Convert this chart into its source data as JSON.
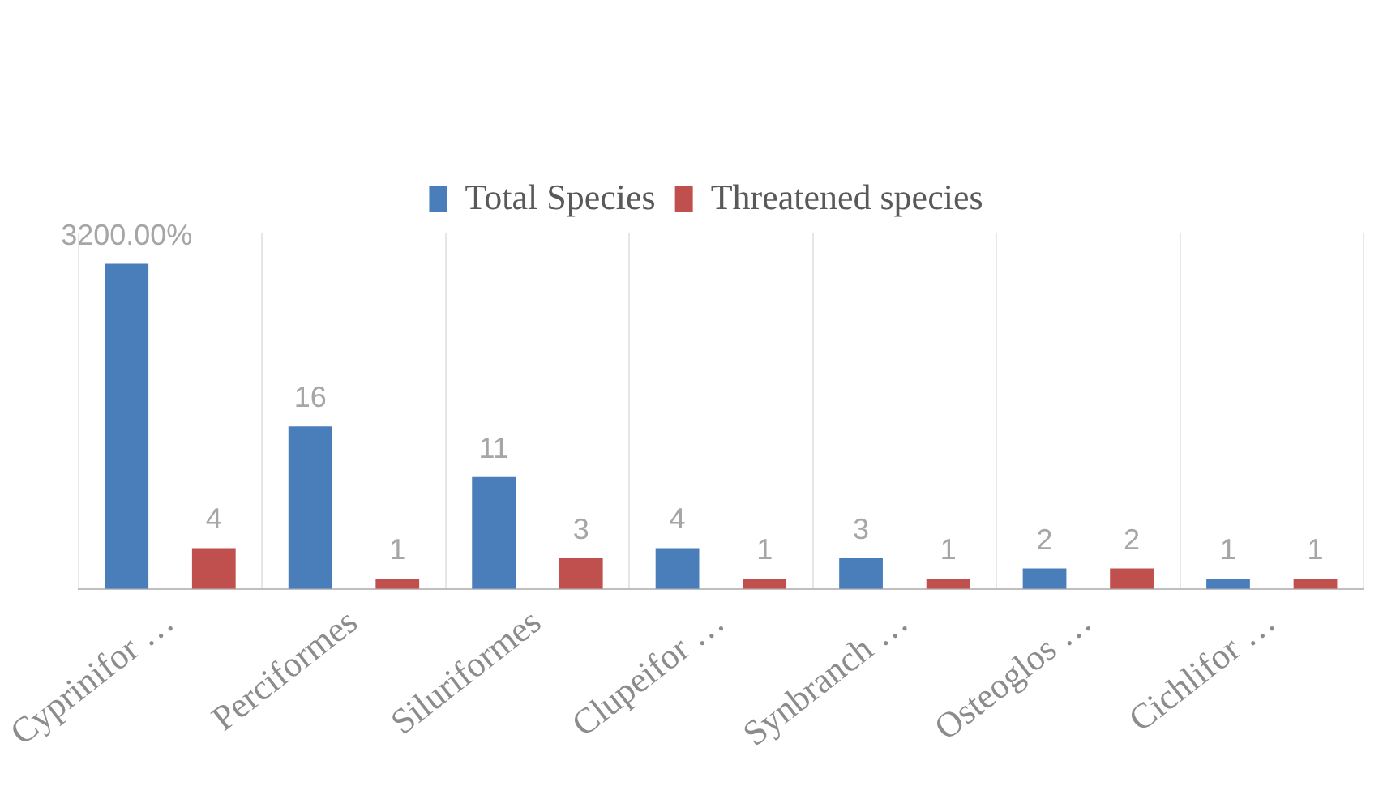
{
  "chart_data": {
    "type": "bar",
    "categories": [
      "Cyprinifor …",
      "Perciformes",
      "Siluriformes",
      "Clupeifor …",
      "Synbranch …",
      "Osteoglos …",
      "Cichlifor …"
    ],
    "series": [
      {
        "name": "Total Species",
        "color": "#4a7ebb",
        "values": [
          32,
          16,
          11,
          4,
          3,
          2,
          1
        ],
        "value_labels": [
          "3200.00%",
          "16",
          "11",
          "4",
          "3",
          "2",
          "1"
        ]
      },
      {
        "name": "Threatened species",
        "color": "#c0504d",
        "values": [
          4,
          1,
          3,
          1,
          1,
          2,
          1
        ],
        "value_labels": [
          "4",
          "1",
          "3",
          "1",
          "1",
          "2",
          "1"
        ]
      }
    ],
    "legend": "top",
    "grid": "x"
  }
}
